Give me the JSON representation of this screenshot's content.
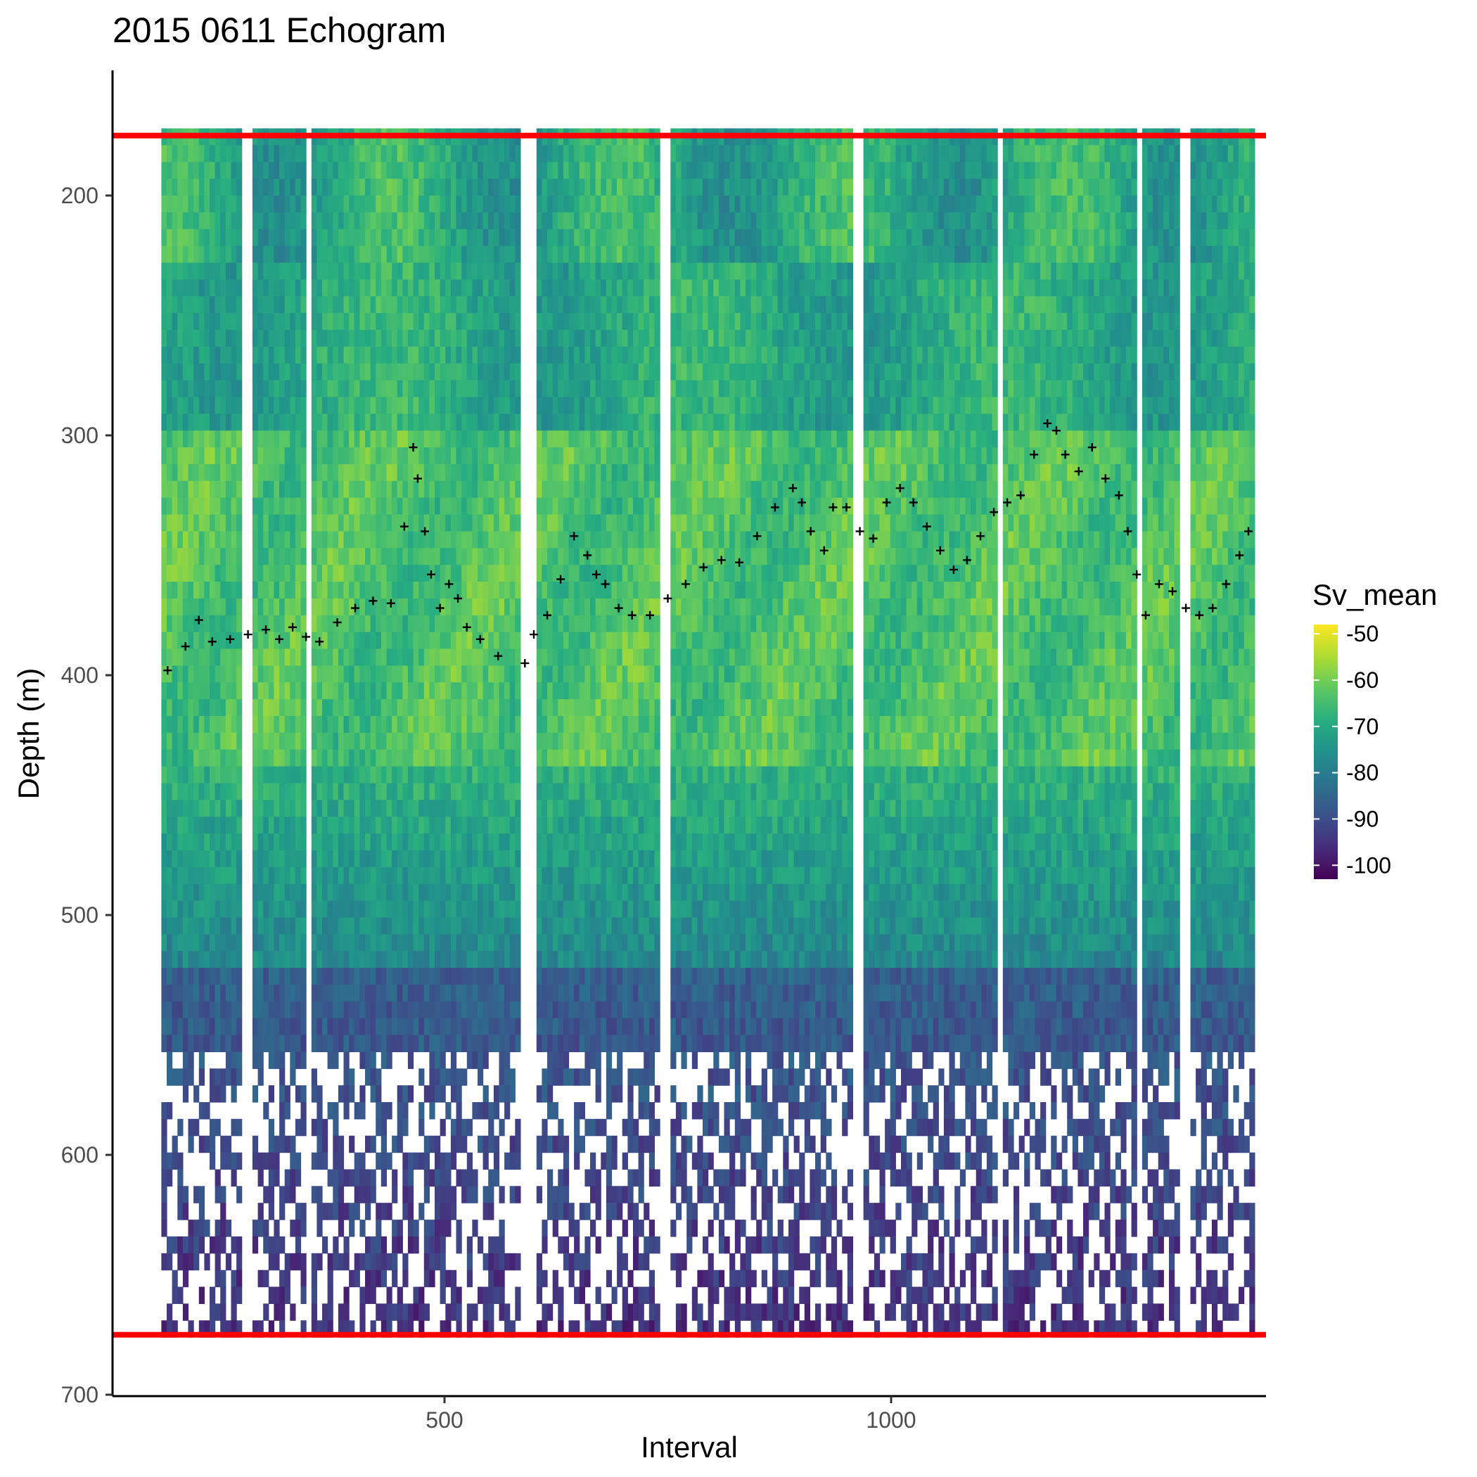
{
  "chart_data": {
    "type": "heatmap",
    "title": "2015 0611 Echogram",
    "xlabel": "Interval",
    "ylabel": "Depth (m)",
    "xlim": [
      130,
      1415
    ],
    "ylim": [
      700,
      150
    ],
    "y_reversed": true,
    "x_ticks": [
      500,
      1000
    ],
    "y_ticks": [
      200,
      300,
      400,
      500,
      600,
      700
    ],
    "grid": false,
    "legend_position": "right",
    "colorscale": "viridis",
    "colorbar": {
      "title": "Sv_mean",
      "range": [
        -103,
        -48
      ],
      "ticks": [
        -50,
        -60,
        -70,
        -80,
        -90,
        -100
      ]
    },
    "reference_lines": [
      {
        "orientation": "horizontal",
        "y": 175,
        "color": "#ff0000"
      },
      {
        "orientation": "horizontal",
        "y": 675,
        "color": "#ff0000"
      }
    ],
    "layer_depth_series": {
      "marker": "+",
      "color": "#000000",
      "x": [
        190,
        210,
        225,
        240,
        260,
        280,
        300,
        315,
        330,
        345,
        360,
        380,
        400,
        420,
        440,
        455,
        465,
        470,
        478,
        485,
        495,
        505,
        515,
        525,
        540,
        560,
        590,
        600,
        615,
        630,
        645,
        660,
        670,
        680,
        695,
        710,
        730,
        750,
        770,
        790,
        810,
        830,
        850,
        870,
        890,
        900,
        910,
        925,
        935,
        950,
        965,
        980,
        995,
        1010,
        1025,
        1040,
        1055,
        1070,
        1085,
        1100,
        1115,
        1130,
        1145,
        1160,
        1175,
        1185,
        1195,
        1210,
        1225,
        1240,
        1255,
        1265,
        1275,
        1285,
        1300,
        1315,
        1330,
        1345,
        1360,
        1375,
        1390,
        1400
      ],
      "y": [
        398,
        388,
        377,
        386,
        385,
        383,
        381,
        385,
        380,
        384,
        386,
        378,
        372,
        369,
        370,
        338,
        305,
        318,
        340,
        358,
        372,
        362,
        368,
        380,
        385,
        392,
        395,
        383,
        375,
        360,
        342,
        350,
        358,
        362,
        372,
        375,
        375,
        368,
        362,
        355,
        352,
        353,
        342,
        330,
        322,
        328,
        340,
        348,
        330,
        330,
        340,
        343,
        328,
        322,
        328,
        338,
        348,
        356,
        352,
        342,
        332,
        328,
        325,
        308,
        295,
        298,
        308,
        315,
        305,
        318,
        325,
        340,
        358,
        375,
        362,
        365,
        372,
        375,
        372,
        362,
        350,
        340
      ]
    },
    "empty_gaps_x": [
      [
        270,
        282
      ],
      [
        340,
        350
      ],
      [
        582,
        598
      ],
      [
        737,
        750
      ],
      [
        952,
        965
      ],
      [
        1115,
        1125
      ],
      [
        1270,
        1280
      ],
      [
        1320,
        1330
      ]
    ]
  }
}
